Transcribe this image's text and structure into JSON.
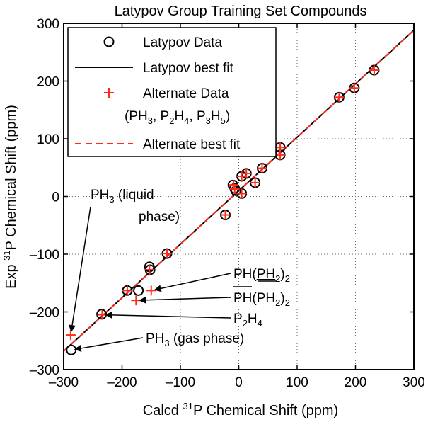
{
  "chart_data": {
    "type": "scatter",
    "title": "Latypov Group Training Set Compounds",
    "xlabel": {
      "pre": "Calcd ",
      "sup": "31",
      "post": "P Chemical Shift (ppm)"
    },
    "ylabel": {
      "pre": "Exp ",
      "sup": "31",
      "post": "P Chemical Shift (ppm)"
    },
    "xlim": [
      -300,
      300
    ],
    "ylim": [
      -300,
      300
    ],
    "xticks": [
      -300,
      -200,
      -100,
      0,
      100,
      200,
      300
    ],
    "yticks": [
      -300,
      -200,
      -100,
      0,
      100,
      200,
      300
    ],
    "xtick_labels": [
      "–300",
      "–200",
      "–100",
      "0",
      "100",
      "200",
      "300"
    ],
    "ytick_labels": [
      "–300",
      "–200",
      "–100",
      "0",
      "100",
      "200",
      "300"
    ],
    "grid": true,
    "legend_position": "top-left",
    "legend": {
      "latypov_data": "Latypov Data",
      "latypov_fit": "Latypov best fit",
      "alternate_data": "Alternate Data",
      "alternate_data_species": {
        "open": "(PH",
        "s1": "3",
        "m1": ", P",
        "s2": "2",
        "m2": "H",
        "s3": "4",
        "m3": ", P",
        "s4": "3",
        "m4": "H",
        "s5": "5",
        "close": ")"
      },
      "alternate_fit": "Alternate best fit"
    },
    "series": [
      {
        "name": "Latypov Data",
        "marker": "circle",
        "color": "#000000",
        "points": [
          [
            -287,
            -266
          ],
          [
            -235,
            -204
          ],
          [
            -191,
            -163
          ],
          [
            -172,
            -163
          ],
          [
            -153,
            -122
          ],
          [
            -152,
            -127
          ],
          [
            -123,
            -99
          ],
          [
            -23,
            -32
          ],
          [
            -10,
            20
          ],
          [
            -7,
            14
          ],
          [
            -5,
            10
          ],
          [
            5,
            5
          ],
          [
            5,
            35
          ],
          [
            13,
            40
          ],
          [
            28,
            24
          ],
          [
            40,
            49
          ],
          [
            71,
            72
          ],
          [
            71,
            85
          ],
          [
            172,
            172
          ],
          [
            198,
            188
          ],
          [
            232,
            219
          ]
        ]
      },
      {
        "name": "Alternate Data",
        "marker": "plus",
        "color": "#ff2a1a",
        "points": [
          [
            -288,
            -240
          ],
          [
            -234,
            -205
          ],
          [
            -191,
            -163
          ],
          [
            -176,
            -180
          ],
          [
            -153,
            -127
          ],
          [
            -150,
            -163
          ],
          [
            -123,
            -99
          ],
          [
            -23,
            -32
          ],
          [
            -9,
            20
          ],
          [
            -7,
            13
          ],
          [
            5,
            5
          ],
          [
            5,
            35
          ],
          [
            13,
            40
          ],
          [
            28,
            24
          ],
          [
            40,
            49
          ],
          [
            71,
            72
          ],
          [
            71,
            85
          ],
          [
            172,
            172
          ],
          [
            198,
            188
          ],
          [
            232,
            219
          ]
        ]
      }
    ],
    "fit_lines": [
      {
        "name": "Latypov best fit",
        "style": "solid",
        "color": "#000000",
        "x": [
          -300,
          300
        ],
        "y": [
          -268,
          288
        ]
      },
      {
        "name": "Alternate best fit",
        "style": "dashed",
        "color": "#ff2a1a",
        "x": [
          -300,
          300
        ],
        "y": [
          -268,
          288
        ]
      }
    ],
    "annotations": {
      "ph3_liquid": {
        "main": "PH",
        "sub": "3",
        "rest": " (liquid",
        "line2": "phase)",
        "target": [
          -288,
          -240
        ]
      },
      "ph_ph2_2_a": {
        "main": "PH(",
        "underlined": "PH",
        "sub": "2",
        "close": ")",
        "sub2": "2",
        "target": [
          -150,
          -163
        ]
      },
      "ph_ph2_2_b": {
        "underlined": "PH",
        "rest": "(PH",
        "sub": "2",
        "close": ")",
        "sub2": "2",
        "target": [
          -176,
          -180
        ]
      },
      "p2h4": {
        "p": "P",
        "s1": "2",
        "h": "H",
        "s2": "4",
        "target": [
          -234,
          -205
        ]
      },
      "ph3_gas": {
        "main": "PH",
        "sub": "3",
        "rest": " (gas phase)",
        "target": [
          -287,
          -266
        ]
      }
    }
  }
}
